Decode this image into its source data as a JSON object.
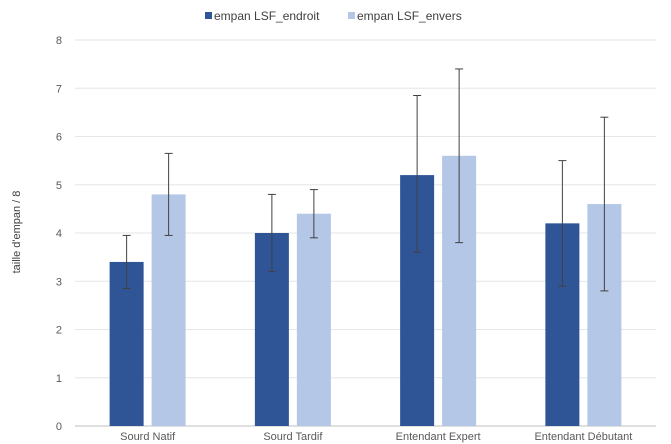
{
  "chart_data": {
    "type": "bar",
    "title": "",
    "xlabel": "",
    "ylabel": "taille d'empan / 8",
    "ylim": [
      0,
      8
    ],
    "yticks": [
      0,
      1,
      2,
      3,
      4,
      5,
      6,
      7,
      8
    ],
    "grid": true,
    "legend_position": "top-center",
    "categories": [
      "Sourd Natif",
      "Sourd Tardif",
      "Entendant Expert",
      "Entendant Débutant"
    ],
    "series": [
      {
        "name": "empan LSF_endroit",
        "color": "#2f5597",
        "values": [
          3.4,
          4.0,
          5.2,
          4.2
        ],
        "error_low": [
          2.85,
          3.2,
          3.6,
          2.9
        ],
        "error_high": [
          3.95,
          4.8,
          6.85,
          5.5
        ]
      },
      {
        "name": "empan LSF_envers",
        "color": "#b4c7e7",
        "values": [
          4.8,
          4.4,
          5.6,
          4.6
        ],
        "error_low": [
          3.95,
          3.9,
          3.8,
          2.8
        ],
        "error_high": [
          5.65,
          4.9,
          7.4,
          6.4
        ]
      }
    ]
  }
}
